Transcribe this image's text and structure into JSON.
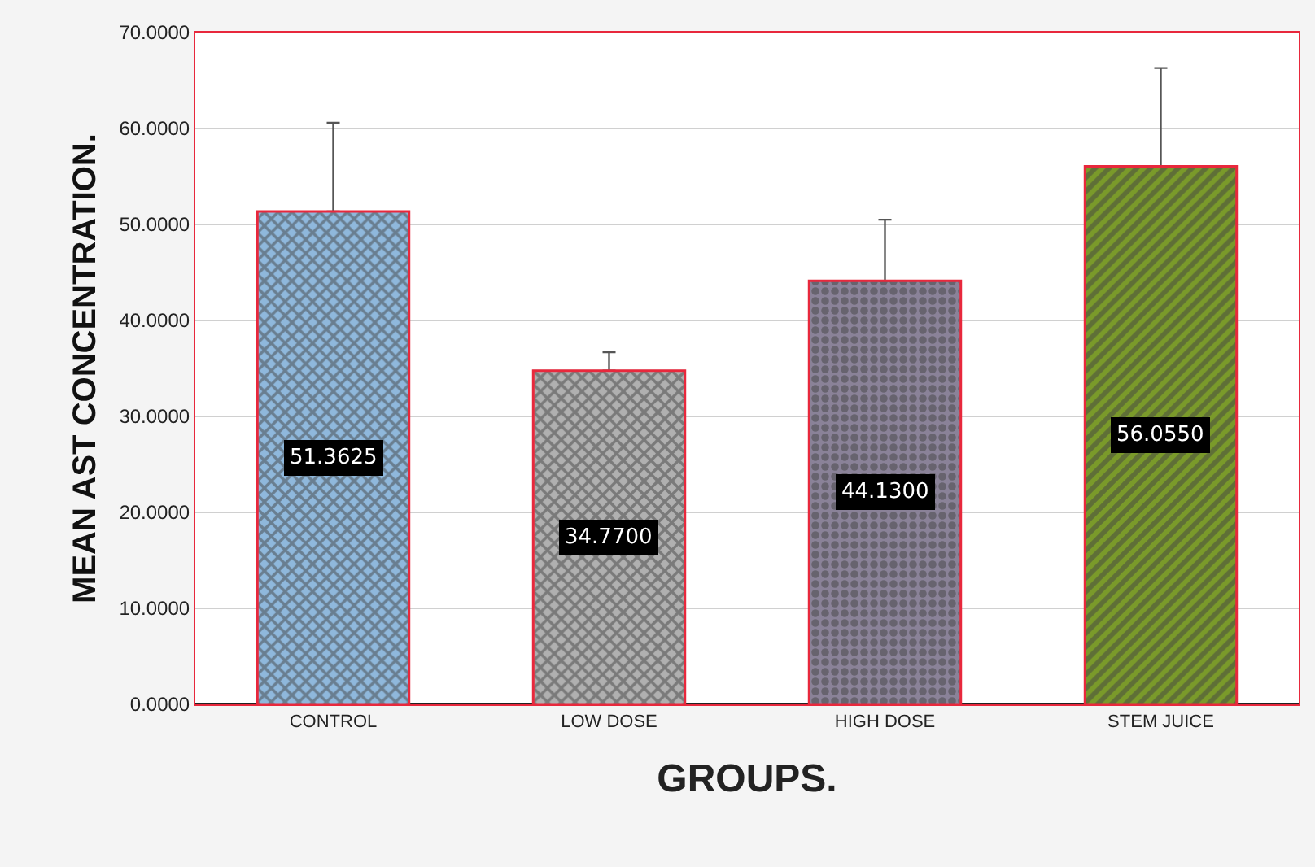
{
  "chart_data": {
    "type": "bar",
    "xlabel": "GROUPS.",
    "ylabel": "MEAN AST CONCENTRATION.",
    "categories": [
      "CONTROL",
      "LOW DOSE",
      "HIGH DOSE",
      "STEM JUICE"
    ],
    "values": [
      51.3625,
      34.77,
      44.13,
      56.055
    ],
    "value_labels": [
      "51.3625",
      "34.7700",
      "44.1300",
      "56.0550"
    ],
    "errors": [
      [
        51.3625,
        60.6
      ],
      [
        34.77,
        36.7
      ],
      [
        44.13,
        50.5
      ],
      [
        56.055,
        66.3
      ]
    ],
    "colors": [
      "#8fb8dc",
      "#b0b0b0",
      "#8a8298",
      "#7a9a2a"
    ],
    "ylim": [
      0,
      70
    ],
    "yticks": [
      {
        "value": 0,
        "label": "0.0000"
      },
      {
        "value": 10,
        "label": "10.0000"
      },
      {
        "value": 20,
        "label": "20.0000"
      },
      {
        "value": 30,
        "label": "30.0000"
      },
      {
        "value": 40,
        "label": "40.0000"
      },
      {
        "value": 50,
        "label": "50.0000"
      },
      {
        "value": 60,
        "label": "60.0000"
      },
      {
        "value": 70,
        "label": "70.0000"
      }
    ],
    "grid": "y"
  }
}
